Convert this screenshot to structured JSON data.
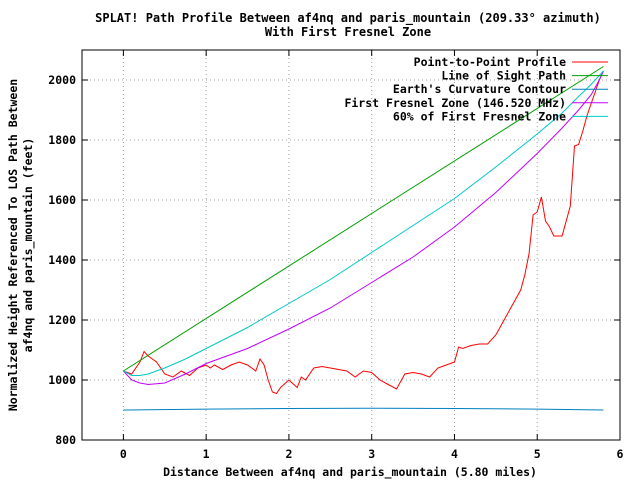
{
  "chart_data": {
    "type": "line",
    "title": "SPLAT! Path Profile Between af4nq and paris_mountain (209.33° azimuth)",
    "subtitle": "With First Fresnel Zone",
    "xlabel": "Distance Between af4nq and paris_mountain (5.80 miles)",
    "ylabel_line1": "Normalized Height Referenced To LOS Path Between",
    "ylabel_line2": "af4nq and paris_mountain (feet)",
    "xlim": [
      -0.5,
      6
    ],
    "ylim": [
      800,
      2100
    ],
    "xticks": [
      0,
      1,
      2,
      3,
      4,
      5,
      6
    ],
    "yticks": [
      800,
      1000,
      1200,
      1400,
      1600,
      1800,
      2000
    ],
    "grid": true,
    "legend_position": "top-right",
    "series": [
      {
        "name": "Point-to-Point Profile",
        "color": "#ff0000",
        "x": [
          0.0,
          0.1,
          0.2,
          0.25,
          0.3,
          0.4,
          0.5,
          0.6,
          0.7,
          0.8,
          0.9,
          1.0,
          1.05,
          1.1,
          1.2,
          1.3,
          1.4,
          1.5,
          1.6,
          1.65,
          1.7,
          1.75,
          1.8,
          1.85,
          1.9,
          2.0,
          2.1,
          2.15,
          2.2,
          2.3,
          2.4,
          2.5,
          2.6,
          2.7,
          2.8,
          2.9,
          3.0,
          3.1,
          3.2,
          3.3,
          3.4,
          3.5,
          3.6,
          3.7,
          3.8,
          3.9,
          4.0,
          4.05,
          4.1,
          4.2,
          4.3,
          4.4,
          4.5,
          4.6,
          4.7,
          4.8,
          4.85,
          4.9,
          4.95,
          5.0,
          5.05,
          5.1,
          5.15,
          5.2,
          5.3,
          5.4,
          5.45,
          5.5,
          5.55,
          5.6,
          5.65,
          5.7,
          5.75,
          5.8
        ],
        "y": [
          1030,
          1020,
          1060,
          1095,
          1080,
          1060,
          1020,
          1010,
          1030,
          1015,
          1040,
          1050,
          1040,
          1050,
          1035,
          1050,
          1060,
          1050,
          1030,
          1070,
          1050,
          1000,
          960,
          955,
          975,
          1000,
          975,
          1010,
          1000,
          1040,
          1045,
          1040,
          1035,
          1030,
          1010,
          1030,
          1025,
          1000,
          985,
          970,
          1020,
          1025,
          1020,
          1010,
          1040,
          1050,
          1060,
          1110,
          1105,
          1115,
          1120,
          1120,
          1150,
          1200,
          1250,
          1300,
          1350,
          1420,
          1550,
          1560,
          1610,
          1530,
          1510,
          1480,
          1480,
          1580,
          1780,
          1785,
          1830,
          1880,
          1920,
          1960,
          2000,
          2030
        ]
      },
      {
        "name": "Line of Sight Path",
        "color": "#00a000",
        "x": [
          0,
          5.8
        ],
        "y": [
          1030,
          2045
        ]
      },
      {
        "name": "Earth's Curvature Contour",
        "color": "#0080c0",
        "x": [
          0,
          1,
          2,
          2.9,
          4,
          5,
          5.8
        ],
        "y": [
          900,
          903,
          905,
          906,
          905,
          903,
          900
        ]
      },
      {
        "name": "First Fresnel Zone (146.520 MHz)",
        "color": "#c000ff",
        "x": [
          0.0,
          0.1,
          0.2,
          0.3,
          0.5,
          0.75,
          1.0,
          1.5,
          2.0,
          2.5,
          3.0,
          3.5,
          4.0,
          4.5,
          5.0,
          5.3,
          5.5,
          5.65,
          5.75,
          5.8
        ],
        "y": [
          1030,
          1000,
          990,
          985,
          990,
          1020,
          1055,
          1105,
          1170,
          1240,
          1325,
          1410,
          1510,
          1625,
          1755,
          1840,
          1900,
          1950,
          2000,
          2030
        ]
      },
      {
        "name": "60% of First Fresnel Zone",
        "color": "#00c8c8",
        "x": [
          0.0,
          0.1,
          0.2,
          0.3,
          0.5,
          0.75,
          1.0,
          1.5,
          2.0,
          2.5,
          3.0,
          3.5,
          4.0,
          4.5,
          5.0,
          5.3,
          5.5,
          5.65,
          5.75,
          5.8
        ],
        "y": [
          1030,
          1015,
          1015,
          1020,
          1040,
          1070,
          1105,
          1175,
          1255,
          1335,
          1425,
          1515,
          1605,
          1710,
          1820,
          1890,
          1945,
          1985,
          2015,
          2030
        ]
      }
    ]
  }
}
